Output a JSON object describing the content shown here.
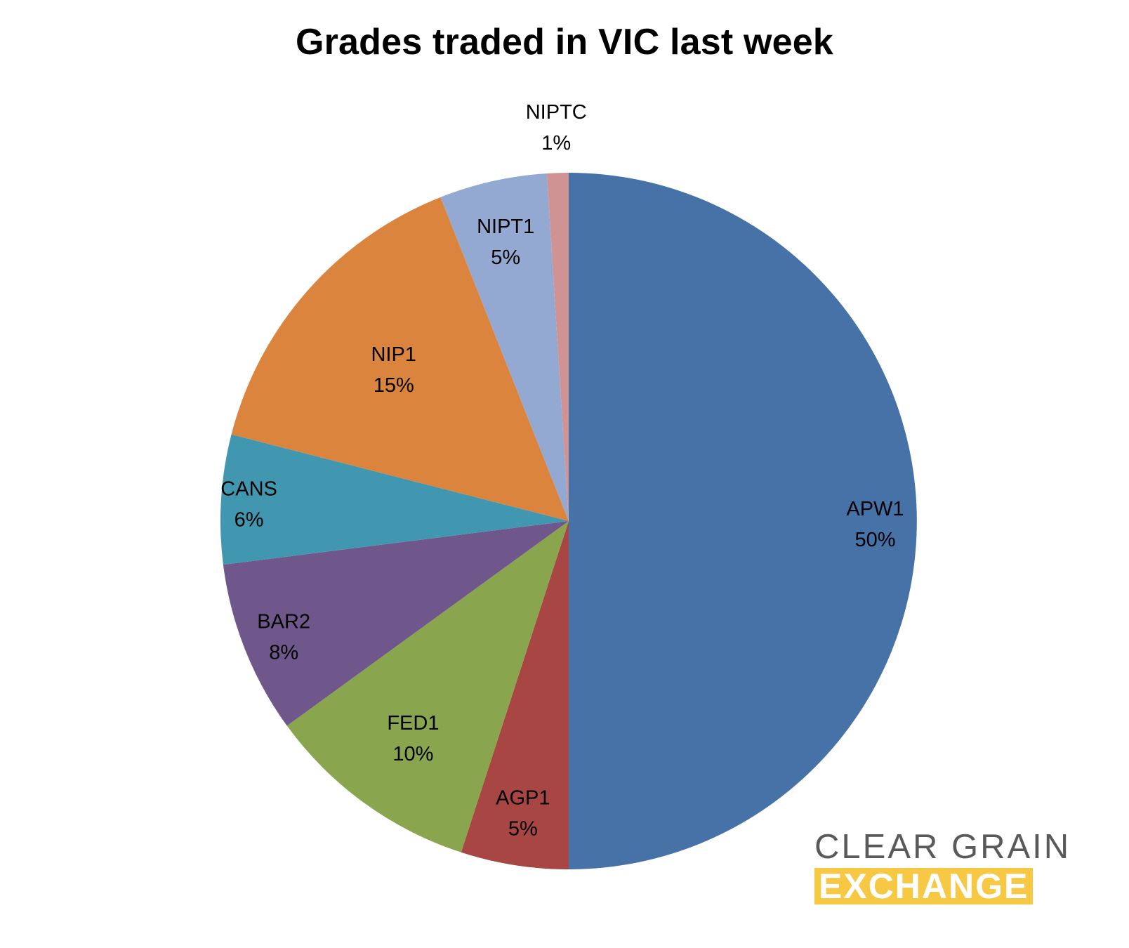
{
  "chart_data": {
    "type": "pie",
    "title": "Grades traded in VIC last week",
    "start_angle": "top",
    "direction": "clockwise",
    "slices": [
      {
        "label": "APW1",
        "value": 50,
        "percent_label": "50%",
        "color": "#4672a8"
      },
      {
        "label": "AGP1",
        "value": 5,
        "percent_label": "5%",
        "color": "#a84644"
      },
      {
        "label": "FED1",
        "value": 10,
        "percent_label": "10%",
        "color": "#89a54e"
      },
      {
        "label": "BAR2",
        "value": 8,
        "percent_label": "8%",
        "color": "#6f578c"
      },
      {
        "label": "CANS",
        "value": 6,
        "percent_label": "6%",
        "color": "#4197af"
      },
      {
        "label": "NIP1",
        "value": 15,
        "percent_label": "15%",
        "color": "#db843e"
      },
      {
        "label": "NIPT1",
        "value": 5,
        "percent_label": "5%",
        "color": "#94a9d1"
      },
      {
        "label": "NIPTC",
        "value": 1,
        "percent_label": "1%",
        "color": "#d09393"
      }
    ]
  },
  "logo": {
    "line1": "CLEAR GRAIN",
    "line2": "EXCHANGE"
  },
  "colors": {
    "logo_gray": "#5a5a5a",
    "logo_yellow": "#f7c843"
  }
}
